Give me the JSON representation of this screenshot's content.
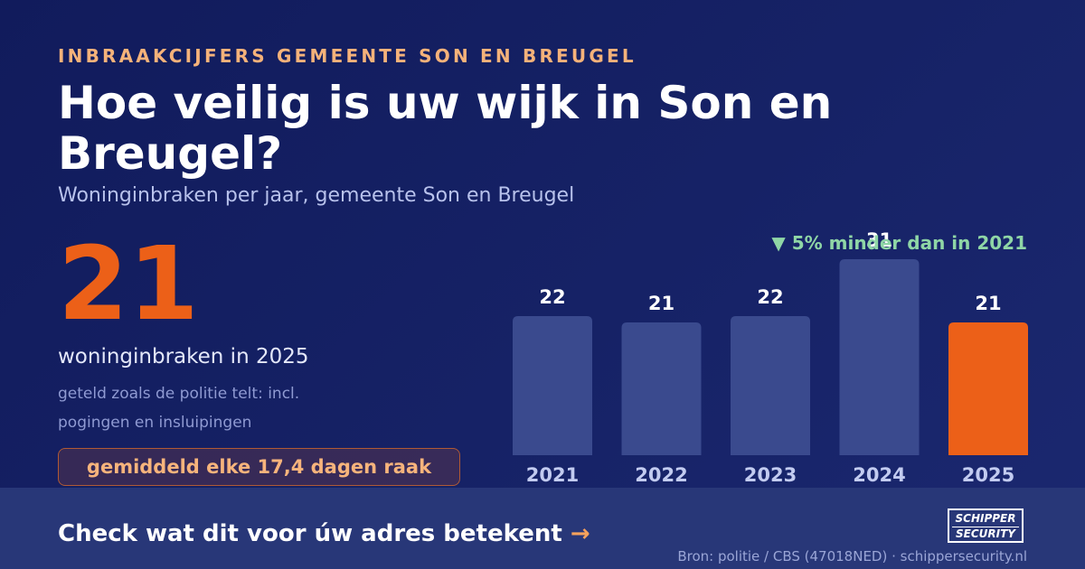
{
  "header": {
    "eyebrow": "INBRAAKCIJFERS GEMEENTE SON EN BREUGEL",
    "title": "Hoe veilig is uw wijk in Son en Breugel?",
    "subtitle": "Woninginbraken per jaar, gemeente Son en Breugel"
  },
  "highlight": {
    "value": "21",
    "caption": "woninginbraken in 2025",
    "note": "geteld zoals de politie telt: incl. pogingen en insluipingen",
    "callout": "gemiddeld elke 17,4 dagen raak"
  },
  "delta_label": "▼ 5% minder dan in 2021",
  "chart_data": {
    "type": "bar",
    "categories": [
      "2021",
      "2022",
      "2023",
      "2024",
      "2025"
    ],
    "values": [
      22,
      21,
      22,
      31,
      21
    ],
    "highlight_index": 4,
    "grid": false,
    "legend": "none",
    "colors": {
      "bar": "#3a4a8e",
      "highlight": "#ec6018",
      "label": "#ffffff",
      "tick": "#c2cbf0"
    }
  },
  "footer": {
    "cta_text": "Check wat dit voor úw adres betekent",
    "cta_arrow": "→",
    "logo_line1": "SCHIPPER",
    "logo_line2": "SECURITY",
    "source": "Bron: politie / CBS (47018NED) · schippersecurity.nl"
  }
}
